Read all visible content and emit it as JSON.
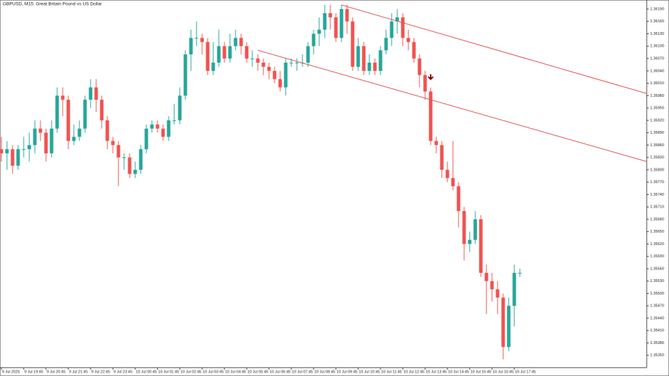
{
  "chart_data": {
    "type": "candlestick",
    "title": "GBPUSD, M15:  Great Britain Pound vs US Dollar",
    "categories": [
      "9 Jul 2025",
      null,
      null,
      null,
      "9 Jul 19:45",
      null,
      null,
      null,
      "9 Jul 20:45",
      null,
      null,
      null,
      "9 Jul 21:45",
      null,
      null,
      null,
      "9 Jul 22:45",
      null,
      null,
      null,
      "9 Jul 23:45",
      null,
      null,
      null,
      "10 Jul 00:45",
      null,
      null,
      null,
      "10 Jul 01:45",
      null,
      null,
      null,
      "10 Jul 02:45",
      null,
      null,
      null,
      "10 Jul 03:45",
      null,
      null,
      null,
      "10 Jul 04:45",
      null,
      null,
      null,
      "10 Jul 05:45",
      null,
      null,
      null,
      "10 Jul 06:45",
      null,
      null,
      null,
      "10 Jul 07:45",
      null,
      null,
      null,
      "10 Jul 08:45",
      null,
      null,
      null,
      "10 Jul 09:45",
      null,
      null,
      null,
      "10 Jul 10:45",
      null,
      null,
      null,
      "10 Jul 11:45",
      null,
      null,
      null,
      "10 Jul 12:45",
      null,
      null,
      null,
      "10 Jul 13:45",
      null,
      null,
      null,
      "10 Jul 14:45",
      null,
      null,
      null,
      "10 Jul 15:45",
      null,
      null,
      null,
      "10 Jul 16:45",
      null,
      null,
      null,
      "10 Jul 17:45",
      null
    ],
    "open": [
      1.3585,
      1.3584,
      1.3585,
      1.3581,
      1.3585,
      1.3585,
      1.3586,
      1.359,
      1.3589,
      1.3584,
      1.359,
      1.3598,
      1.3597,
      1.3587,
      1.3588,
      1.359,
      1.3597,
      1.36,
      1.3597,
      1.3592,
      1.3587,
      1.3586,
      1.3583,
      1.3583,
      1.3579,
      1.358,
      1.3585,
      1.359,
      1.3591,
      1.359,
      1.3588,
      1.3592,
      1.3592,
      1.3598,
      1.3608,
      1.3612,
      1.3612,
      1.3611,
      1.3604,
      1.3606,
      1.361,
      1.3607,
      1.361,
      1.3612,
      1.361,
      1.3607,
      1.3607,
      1.3606,
      1.3605,
      1.3604,
      1.3602,
      1.36,
      1.3606,
      1.3606,
      1.3606,
      1.3606,
      1.361,
      1.3613,
      1.3614,
      1.3618,
      1.3617,
      1.3612,
      1.3619,
      1.3616,
      1.3605,
      1.361,
      1.3604,
      1.3606,
      1.3604,
      1.3609,
      1.3612,
      1.3616,
      1.3617,
      1.3612,
      1.3611,
      1.3607,
      1.3603,
      1.3599,
      1.3587,
      1.3586,
      1.358,
      1.3578,
      1.3576,
      1.357,
      1.3562,
      1.3563,
      1.3568,
      1.3555,
      1.3553,
      1.3551,
      1.3549,
      1.3537,
      1.3547,
      1.3555
    ],
    "high": [
      1.3588,
      1.3587,
      1.3586,
      1.3586,
      1.3588,
      1.3589,
      1.3592,
      1.3592,
      1.359,
      1.3592,
      1.36,
      1.36,
      1.3598,
      1.3591,
      1.3592,
      1.3598,
      1.3602,
      1.3602,
      1.3598,
      1.3593,
      1.3588,
      1.3587,
      1.3584,
      1.3584,
      1.3582,
      1.3586,
      1.3591,
      1.3592,
      1.3592,
      1.3591,
      1.3593,
      1.3596,
      1.36,
      1.3609,
      1.3614,
      1.3616,
      1.3613,
      1.3612,
      1.3611,
      1.3614,
      1.3611,
      1.3613,
      1.3614,
      1.3613,
      1.3611,
      1.3609,
      1.3608,
      1.3607,
      1.3606,
      1.3605,
      1.3604,
      1.3607,
      1.3607,
      1.3607,
      1.3608,
      1.3611,
      1.3614,
      1.3617,
      1.362,
      1.362,
      1.3618,
      1.362,
      1.362,
      1.3617,
      1.3612,
      1.3611,
      1.3608,
      1.3607,
      1.361,
      1.3614,
      1.3618,
      1.3619,
      1.3618,
      1.3614,
      1.3612,
      1.3608,
      1.3604,
      1.36,
      1.3588,
      1.3587,
      1.3582,
      1.3587,
      1.3577,
      1.3571,
      1.3565,
      1.357,
      1.3569,
      1.3557,
      1.3555,
      1.3553,
      1.355,
      1.3549,
      1.3557,
      1.3556
    ],
    "low": [
      1.3582,
      1.358,
      1.3579,
      1.358,
      1.3583,
      1.3582,
      1.3584,
      1.3587,
      1.3582,
      1.3583,
      1.3589,
      1.3593,
      1.3585,
      1.3586,
      1.3587,
      1.3589,
      1.3595,
      1.3594,
      1.359,
      1.3585,
      1.3584,
      1.3576,
      1.358,
      1.3578,
      1.3578,
      1.3579,
      1.3584,
      1.3589,
      1.3589,
      1.3587,
      1.3587,
      1.3591,
      1.3591,
      1.3597,
      1.3604,
      1.361,
      1.3608,
      1.3603,
      1.3603,
      1.3605,
      1.3606,
      1.3606,
      1.3609,
      1.3608,
      1.3606,
      1.3605,
      1.3604,
      1.3603,
      1.3602,
      1.3601,
      1.3599,
      1.3598,
      1.3605,
      1.3604,
      1.3605,
      1.3605,
      1.3608,
      1.361,
      1.3612,
      1.3614,
      1.3611,
      1.3611,
      1.3613,
      1.3604,
      1.3604,
      1.3603,
      1.3603,
      1.3603,
      1.3603,
      1.3608,
      1.361,
      1.3613,
      1.361,
      1.3609,
      1.3606,
      1.36,
      1.3597,
      1.3586,
      1.3584,
      1.3578,
      1.3577,
      1.3575,
      1.3566,
      1.3558,
      1.356,
      1.3562,
      1.3554,
      1.3545,
      1.3548,
      1.3545,
      1.3534,
      1.3536,
      1.3542,
      1.3554
    ],
    "close": [
      1.3584,
      1.3585,
      1.3581,
      1.3585,
      1.3585,
      1.3586,
      1.359,
      1.3589,
      1.3584,
      1.359,
      1.3598,
      1.3597,
      1.3587,
      1.3588,
      1.359,
      1.3597,
      1.36,
      1.3597,
      1.3592,
      1.3587,
      1.3586,
      1.3583,
      1.3583,
      1.3579,
      1.358,
      1.3585,
      1.359,
      1.3591,
      1.359,
      1.3588,
      1.3592,
      1.3592,
      1.3598,
      1.3608,
      1.3612,
      1.3612,
      1.3611,
      1.3604,
      1.3606,
      1.361,
      1.3607,
      1.361,
      1.3612,
      1.361,
      1.3607,
      1.3607,
      1.3606,
      1.3605,
      1.3604,
      1.3602,
      1.36,
      1.3606,
      1.3606,
      1.3606,
      1.3606,
      1.361,
      1.3613,
      1.3614,
      1.3618,
      1.3617,
      1.3612,
      1.3619,
      1.3616,
      1.3605,
      1.361,
      1.3604,
      1.3606,
      1.3604,
      1.3609,
      1.3612,
      1.3616,
      1.3617,
      1.3612,
      1.3611,
      1.3607,
      1.3603,
      1.3599,
      1.3587,
      1.3586,
      1.358,
      1.3578,
      1.3576,
      1.357,
      1.3562,
      1.3563,
      1.3568,
      1.3555,
      1.3553,
      1.3551,
      1.3549,
      1.3537,
      1.3547,
      1.3555,
      1.3555
    ],
    "up_color": "#26a69a",
    "down_color": "#ef5350",
    "ylim": [
      1.3532,
      1.36212
    ],
    "yticks": [
      {
        "value": 1.3619,
        "label": "1.36190"
      },
      {
        "value": 1.3616,
        "label": "1.36160"
      },
      {
        "value": 1.3613,
        "label": "1.36130"
      },
      {
        "value": 1.361,
        "label": "1.36100"
      },
      {
        "value": 1.3607,
        "label": "1.36070"
      },
      {
        "value": 1.3604,
        "label": "1.36040"
      },
      {
        "value": 1.3601,
        "label": "1.36010"
      },
      {
        "value": 1.3598,
        "label": "1.35980"
      },
      {
        "value": 1.3595,
        "label": "1.35950"
      },
      {
        "value": 1.3592,
        "label": "1.35920"
      },
      {
        "value": 1.3589,
        "label": "1.35890"
      },
      {
        "value": 1.3586,
        "label": "1.35860"
      },
      {
        "value": 1.3583,
        "label": "1.35830"
      },
      {
        "value": 1.358,
        "label": "1.35800"
      },
      {
        "value": 1.3577,
        "label": "1.35770"
      },
      {
        "value": 1.3574,
        "label": "1.35740"
      },
      {
        "value": 1.3571,
        "label": "1.35710"
      },
      {
        "value": 1.3568,
        "label": "1.35680"
      },
      {
        "value": 1.3565,
        "label": "1.35650"
      },
      {
        "value": 1.3562,
        "label": "1.35620"
      },
      {
        "value": 1.3559,
        "label": "1.35590"
      },
      {
        "value": 1.3556,
        "label": "1.35560"
      },
      {
        "value": 1.3553,
        "label": "1.35530"
      },
      {
        "value": 1.355,
        "label": "1.35500"
      },
      {
        "value": 1.3547,
        "label": "1.35470"
      },
      {
        "value": 1.3544,
        "label": "1.35440"
      },
      {
        "value": 1.3541,
        "label": "1.35410"
      },
      {
        "value": 1.3538,
        "label": "1.35380"
      },
      {
        "value": 1.3535,
        "label": "1.35350"
      }
    ],
    "grid": false,
    "trendlines": [
      {
        "x": [
          61,
          116
        ],
        "y": [
          1.362,
          1.35985
        ],
        "color": "#e05050"
      },
      {
        "x": [
          46,
          116
        ],
        "y": [
          1.3609,
          1.3582
        ],
        "color": "#e05050"
      }
    ],
    "arrow": {
      "index": 77,
      "price": 1.3602,
      "color": "#7a0a0a"
    }
  }
}
